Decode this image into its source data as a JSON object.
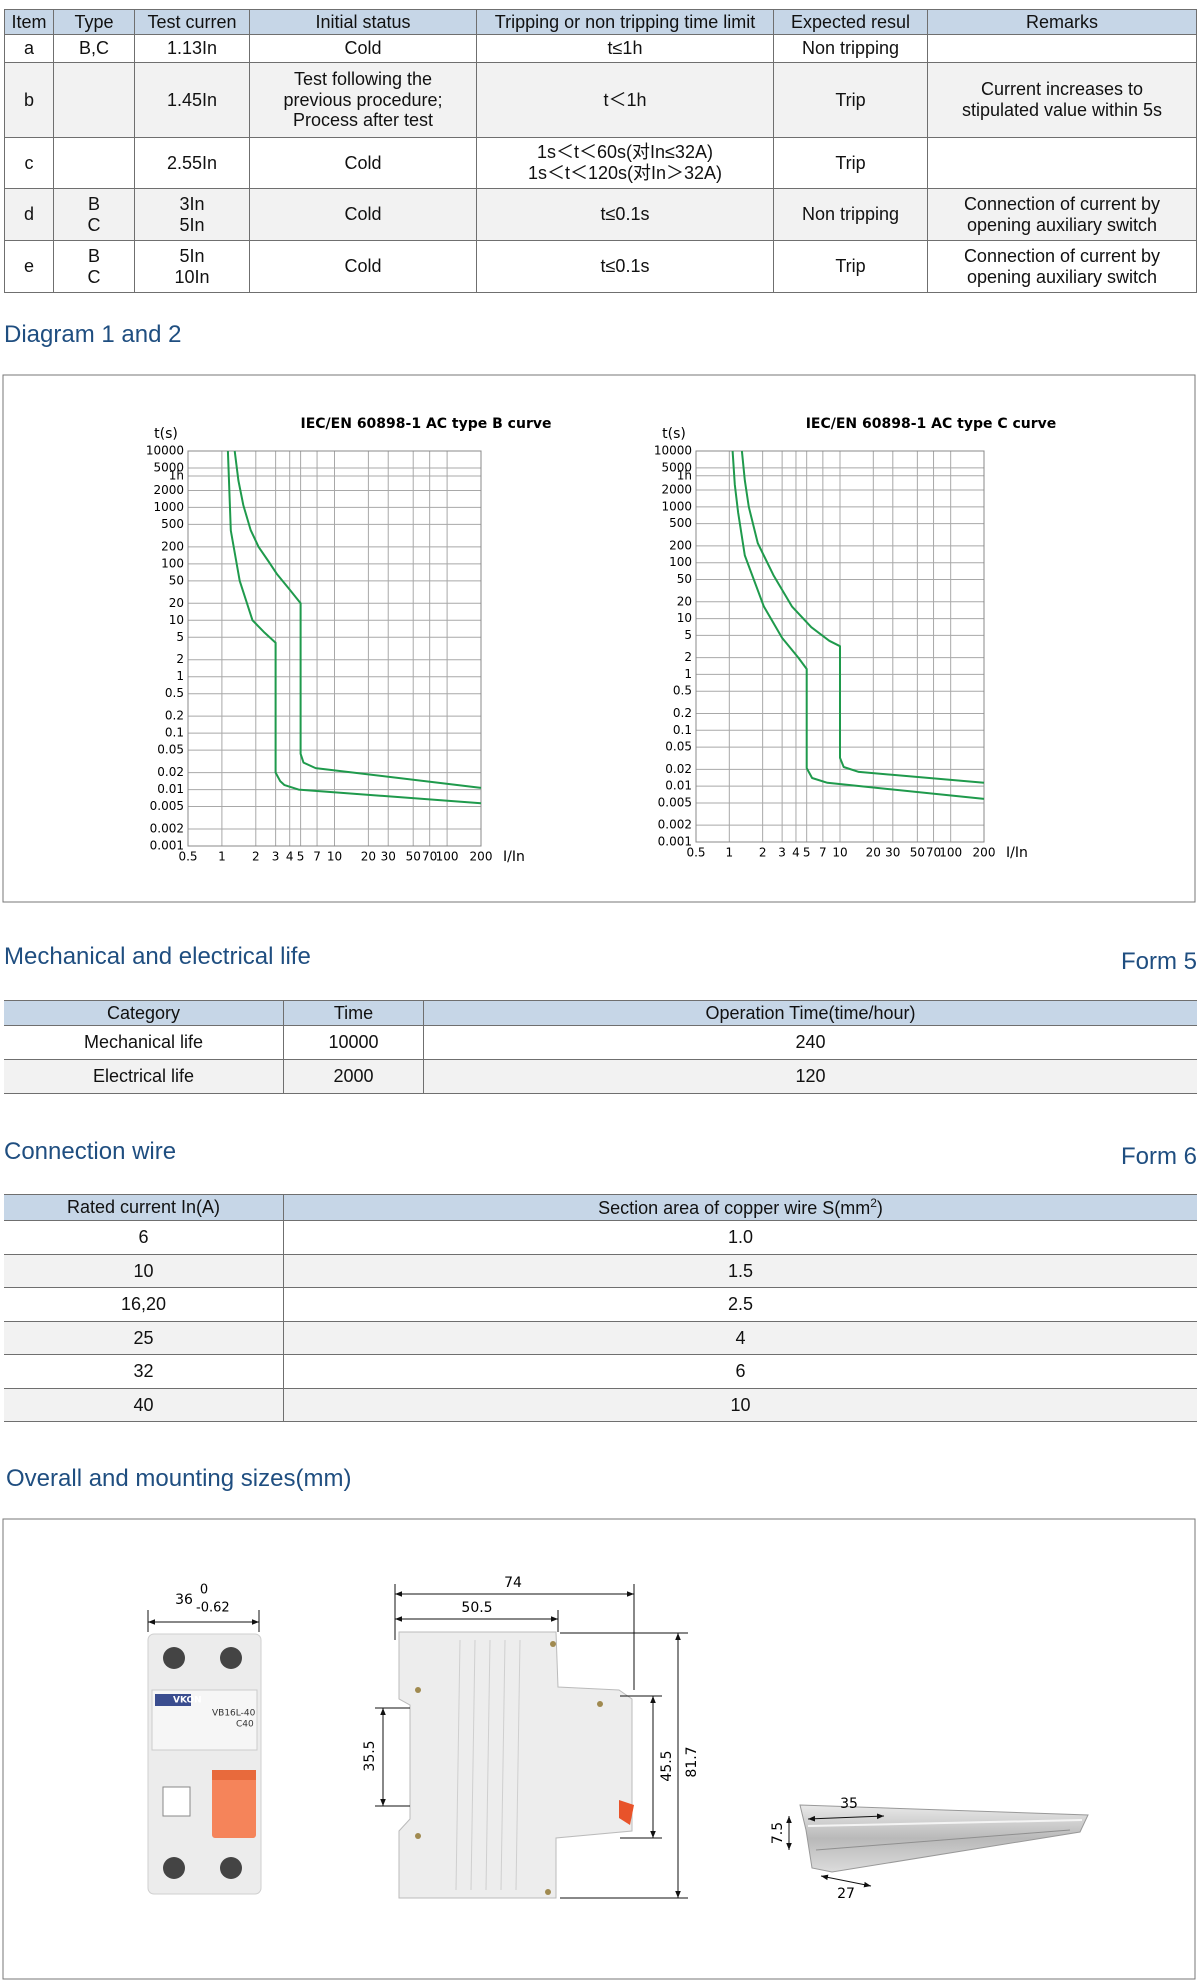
{
  "table1": {
    "header": [
      "Item",
      "Type",
      "Test curren",
      "Initial status",
      "Tripping or non tripping time limit",
      "Expected resul",
      "Remarks"
    ],
    "rows": [
      [
        "a",
        "B,C",
        "1.13In",
        "Cold",
        "t≤1h",
        "Non tripping",
        null
      ],
      [
        "b",
        null,
        "1.45In",
        [
          "Test following the",
          "previous procedure;",
          "Process after test"
        ],
        "t＜1h",
        "Trip",
        [
          "Current increases to",
          "stipulated value within 5s"
        ]
      ],
      [
        "c",
        null,
        "2.55In",
        "Cold",
        [
          "1s＜t＜60s(对In≤32A)",
          "1s＜t＜120s(对In＞32A)"
        ],
        "Trip",
        null
      ],
      [
        "d",
        [
          "B",
          "C"
        ],
        [
          "3In",
          "5In"
        ],
        "Cold",
        "t≤0.1s",
        "Non tripping",
        [
          "Connection of current by",
          "opening auxiliary switch"
        ]
      ],
      [
        "e",
        [
          "B",
          "C"
        ],
        [
          "5In",
          "10In"
        ],
        "Cold",
        "t≤0.1s",
        "Trip",
        [
          "Connection of current by",
          "opening auxiliary switch"
        ]
      ]
    ]
  },
  "diagram_heading": "Diagram 1 and 2",
  "diagrams": [
    {
      "title": "IEC/EN 60898-1 AC type B curve",
      "y_label": "t(s)",
      "x_label": "I/In",
      "log": true,
      "grid": true,
      "xlim": [
        0.5,
        200
      ],
      "ylim": [
        0.001,
        10000
      ],
      "xticks": [
        0.5,
        1,
        2,
        3,
        4,
        5,
        7,
        10,
        20,
        30,
        50,
        70,
        100,
        200
      ],
      "yticks": [
        10000,
        5000,
        {
          "value": 3600,
          "label": "1h"
        },
        2000,
        1000,
        500,
        200,
        100,
        50,
        20,
        10,
        5,
        2,
        1,
        0.5,
        0.2,
        0.1,
        0.05,
        0.02,
        0.01,
        0.005,
        0.002,
        0.001
      ],
      "series": [
        {
          "color": "#1f9a4c",
          "x": [
            1.3,
            1.4,
            1.55,
            1.8,
            2.12,
            2.6,
            3.1,
            4,
            5,
            5,
            5.3,
            6.8,
            200
          ],
          "values": [
            10000,
            3000,
            1100,
            400,
            200,
            110,
            65,
            35,
            20,
            0.043,
            0.03,
            0.024,
            0.0107
          ]
        },
        {
          "color": "#1f9a4c",
          "x": [
            1.13,
            1.17,
            1.2,
            1.44,
            1.87,
            2.4,
            3,
            3,
            3.3,
            3.6,
            4.8,
            200
          ],
          "values": [
            10000,
            1500,
            390,
            50,
            10,
            6,
            4,
            0.02,
            0.014,
            0.012,
            0.01,
            0.0057
          ]
        }
      ]
    },
    {
      "title": "IEC/EN 60898-1 AC type C curve",
      "y_label": "t(s)",
      "x_label": "I/In",
      "log": true,
      "grid": true,
      "xlim": [
        0.5,
        200
      ],
      "ylim": [
        0.001,
        10000
      ],
      "xticks": [
        0.5,
        1,
        2,
        3,
        4,
        5,
        7,
        10,
        20,
        30,
        50,
        70,
        100,
        200
      ],
      "yticks": [
        10000,
        5000,
        {
          "value": 3600,
          "label": "1h"
        },
        2000,
        1000,
        500,
        200,
        100,
        50,
        20,
        10,
        5,
        2,
        1,
        0.5,
        0.2,
        0.1,
        0.05,
        0.02,
        0.01,
        0.005,
        0.002,
        0.001
      ],
      "series": [
        {
          "color": "#1f9a4c",
          "x": [
            1.3,
            1.38,
            1.5,
            1.81,
            2.5,
            3.68,
            5.5,
            8,
            10,
            10,
            10.8,
            14.8,
            200
          ],
          "values": [
            10000,
            3000,
            1000,
            224,
            60,
            16.5,
            7,
            4,
            3.2,
            0.032,
            0.022,
            0.018,
            0.0115
          ]
        },
        {
          "color": "#1f9a4c",
          "x": [
            1.07,
            1.12,
            1.2,
            1.38,
            2.05,
            3,
            4.2,
            5,
            5,
            5.6,
            7.7,
            200
          ],
          "values": [
            10000,
            2500,
            800,
            135,
            16.5,
            4.5,
            2,
            1.25,
            0.021,
            0.014,
            0.0115,
            0.0059
          ]
        }
      ]
    }
  ],
  "life": {
    "heading": "Mechanical and electrical life",
    "form": "Form 5",
    "header": [
      "Category",
      "Time",
      "Operation Time(time/hour)"
    ],
    "rows": [
      [
        "Mechanical life",
        "10000",
        "240"
      ],
      [
        "Electrical life",
        "2000",
        "120"
      ]
    ]
  },
  "wire": {
    "heading": "Connection wire",
    "form": "Form 6",
    "header": [
      "Rated current In(A)",
      {
        "text": "Section area of copper wire S(mm",
        "sup": "2",
        "end": ")"
      }
    ],
    "rows": [
      [
        "6",
        "1.0"
      ],
      [
        "10",
        "1.5"
      ],
      [
        "16,20",
        "2.5"
      ],
      [
        "25",
        "4"
      ],
      [
        "32",
        "6"
      ],
      [
        "40",
        "10"
      ]
    ]
  },
  "sizes": {
    "heading": "Overall and mounting sizes(mm)",
    "front": {
      "width": "36",
      "tol_upper": "0",
      "tol_lower": "-0.62",
      "brand": "VKON",
      "model": "VB16L-40",
      "rating": "C40"
    },
    "side": {
      "depth": "74",
      "depth_front": "50.5",
      "rail_height": "35.5",
      "front_height": "45.5",
      "height": "81.7"
    },
    "rail": {
      "width": "35",
      "height": "7.5",
      "inner": "27"
    }
  }
}
